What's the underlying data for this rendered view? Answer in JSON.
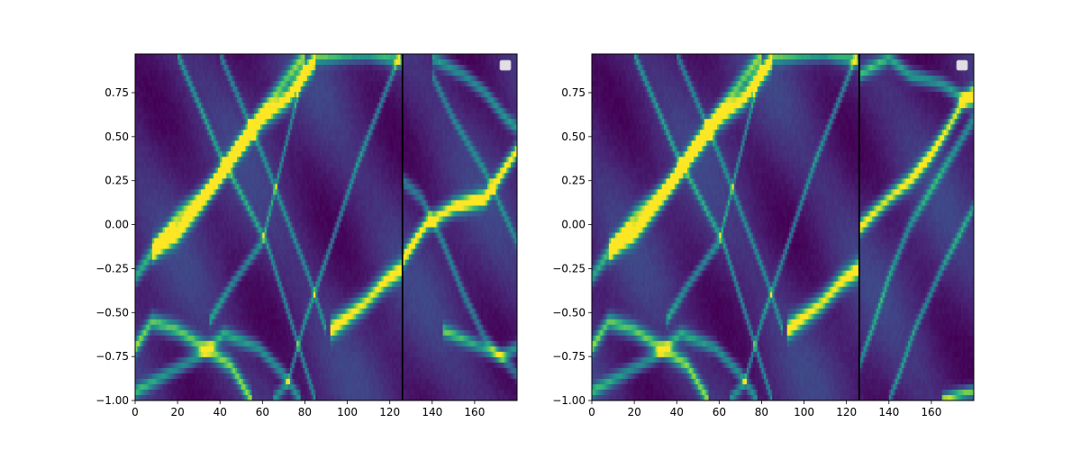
{
  "chart_data": [
    {
      "type": "heatmap",
      "title": "",
      "xlabel": "",
      "ylabel": "",
      "xlim": [
        0,
        180
      ],
      "ylim": [
        -1.0,
        0.97
      ],
      "xticks": [
        0,
        20,
        40,
        60,
        80,
        100,
        120,
        140,
        160
      ],
      "xtick_labels": [
        "0",
        "20",
        "40",
        "60",
        "80",
        "100",
        "120",
        "140",
        "160"
      ],
      "yticks": [
        -1.0,
        -0.75,
        -0.5,
        -0.25,
        0.0,
        0.25,
        0.5,
        0.75
      ],
      "ytick_labels": [
        "−1.00",
        "−0.75",
        "−0.50",
        "−0.25",
        "0.00",
        "0.25",
        "0.50",
        "0.75"
      ],
      "colormap": "viridis",
      "vertical_line_x": 126,
      "legend": {
        "placement": "top-right",
        "entries": []
      },
      "ridges": [
        {
          "points": [
            [
              8,
              -0.15
            ],
            [
              20,
              -0.05
            ],
            [
              32,
              0.13
            ],
            [
              47,
              0.4
            ],
            [
              60,
              0.6
            ],
            [
              72,
              0.72
            ],
            [
              85,
              0.94
            ]
          ],
          "intensity": 0.95,
          "width": 0.06
        },
        {
          "points": [
            [
              0,
              -0.3
            ],
            [
              20,
              0.05
            ],
            [
              38,
              0.25
            ],
            [
              58,
              0.62
            ],
            [
              80,
              0.97
            ]
          ],
          "intensity": 0.6,
          "width": 0.05
        },
        {
          "points": [
            [
              92,
              -0.6
            ],
            [
              108,
              -0.45
            ],
            [
              118,
              -0.32
            ],
            [
              126,
              -0.25
            ]
          ],
          "intensity": 0.9,
          "width": 0.06
        },
        {
          "points": [
            [
              0,
              -0.7
            ],
            [
              8,
              -0.55
            ],
            [
              20,
              -0.6
            ],
            [
              35,
              -0.72
            ],
            [
              45,
              -0.8
            ],
            [
              55,
              -1.0
            ]
          ],
          "intensity": 0.7,
          "width": 0.05
        },
        {
          "points": [
            [
              0,
              -0.95
            ],
            [
              15,
              -0.85
            ],
            [
              30,
              -0.75
            ],
            [
              42,
              -0.62
            ],
            [
              58,
              -0.7
            ],
            [
              70,
              -0.85
            ],
            [
              78,
              -1.0
            ]
          ],
          "intensity": 0.55,
          "width": 0.04
        },
        {
          "points": [
            [
              20,
              0.97
            ],
            [
              40,
              0.4
            ],
            [
              62,
              -0.1
            ],
            [
              85,
              -1.0
            ]
          ],
          "intensity": 0.5,
          "width": 0.035
        },
        {
          "points": [
            [
              40,
              0.97
            ],
            [
              60,
              0.4
            ],
            [
              82,
              -0.3
            ],
            [
              90,
              -0.6
            ]
          ],
          "intensity": 0.45,
          "width": 0.035
        },
        {
          "points": [
            [
              80,
              0.9
            ],
            [
              70,
              0.4
            ],
            [
              60,
              -0.1
            ],
            [
              45,
              -0.35
            ],
            [
              35,
              -0.55
            ]
          ],
          "intensity": 0.5,
          "width": 0.035
        },
        {
          "points": [
            [
              125,
              0.97
            ],
            [
              105,
              0.35
            ],
            [
              90,
              -0.2
            ],
            [
              80,
              -0.55
            ],
            [
              72,
              -0.9
            ],
            [
              65,
              -1.0
            ]
          ],
          "intensity": 0.5,
          "width": 0.035
        },
        {
          "points": [
            [
              85,
              0.95
            ],
            [
              110,
              0.97
            ],
            [
              126,
              0.93
            ]
          ],
          "intensity": 0.6,
          "width": 0.04
        },
        {
          "points": [
            [
              126,
              -0.2
            ],
            [
              137,
              0.0
            ],
            [
              150,
              0.1
            ],
            [
              165,
              0.15
            ],
            [
              176,
              0.35
            ],
            [
              180,
              0.42
            ]
          ],
          "intensity": 0.95,
          "width": 0.05
        },
        {
          "points": [
            [
              126,
              0.25
            ],
            [
              135,
              0.15
            ],
            [
              145,
              -0.1
            ],
            [
              155,
              -0.4
            ],
            [
              165,
              -0.65
            ],
            [
              180,
              -0.85
            ]
          ],
          "intensity": 0.45,
          "width": 0.04
        },
        {
          "points": [
            [
              140,
              0.95
            ],
            [
              155,
              0.85
            ],
            [
              165,
              0.75
            ],
            [
              175,
              0.6
            ],
            [
              180,
              0.55
            ]
          ],
          "intensity": 0.55,
          "width": 0.04
        },
        {
          "points": [
            [
              145,
              -0.6
            ],
            [
              160,
              -0.68
            ],
            [
              172,
              -0.75
            ],
            [
              180,
              -0.7
            ]
          ],
          "intensity": 0.6,
          "width": 0.04
        },
        {
          "points": [
            [
              180,
              -0.1
            ],
            [
              165,
              0.3
            ],
            [
              150,
              0.6
            ],
            [
              140,
              0.85
            ]
          ],
          "intensity": 0.4,
          "width": 0.035
        }
      ]
    },
    {
      "type": "heatmap",
      "title": "",
      "xlabel": "",
      "ylabel": "",
      "xlim": [
        0,
        180
      ],
      "ylim": [
        -1.0,
        0.97
      ],
      "xticks": [
        0,
        20,
        40,
        60,
        80,
        100,
        120,
        140,
        160
      ],
      "xtick_labels": [
        "0",
        "20",
        "40",
        "60",
        "80",
        "100",
        "120",
        "140",
        "160"
      ],
      "yticks": [
        -1.0,
        -0.75,
        -0.5,
        -0.25,
        0.0,
        0.25,
        0.5,
        0.75
      ],
      "ytick_labels": [
        "−1.00",
        "−0.75",
        "−0.50",
        "−0.25",
        "0.00",
        "0.25",
        "0.50",
        "0.75"
      ],
      "colormap": "viridis",
      "vertical_line_x": 126,
      "legend": {
        "placement": "top-right",
        "entries": []
      },
      "ridges": [
        {
          "points": [
            [
              8,
              -0.15
            ],
            [
              20,
              -0.05
            ],
            [
              32,
              0.13
            ],
            [
              47,
              0.4
            ],
            [
              60,
              0.6
            ],
            [
              72,
              0.72
            ],
            [
              85,
              0.94
            ]
          ],
          "intensity": 0.95,
          "width": 0.06
        },
        {
          "points": [
            [
              0,
              -0.3
            ],
            [
              20,
              0.05
            ],
            [
              38,
              0.25
            ],
            [
              58,
              0.62
            ],
            [
              80,
              0.97
            ]
          ],
          "intensity": 0.6,
          "width": 0.05
        },
        {
          "points": [
            [
              92,
              -0.6
            ],
            [
              108,
              -0.45
            ],
            [
              118,
              -0.32
            ],
            [
              126,
              -0.25
            ]
          ],
          "intensity": 0.9,
          "width": 0.06
        },
        {
          "points": [
            [
              0,
              -0.7
            ],
            [
              8,
              -0.55
            ],
            [
              20,
              -0.6
            ],
            [
              35,
              -0.72
            ],
            [
              45,
              -0.8
            ],
            [
              55,
              -1.0
            ]
          ],
          "intensity": 0.7,
          "width": 0.05
        },
        {
          "points": [
            [
              0,
              -0.95
            ],
            [
              15,
              -0.85
            ],
            [
              30,
              -0.75
            ],
            [
              42,
              -0.62
            ],
            [
              58,
              -0.7
            ],
            [
              70,
              -0.85
            ],
            [
              78,
              -1.0
            ]
          ],
          "intensity": 0.55,
          "width": 0.04
        },
        {
          "points": [
            [
              20,
              0.97
            ],
            [
              40,
              0.4
            ],
            [
              62,
              -0.1
            ],
            [
              85,
              -1.0
            ]
          ],
          "intensity": 0.5,
          "width": 0.035
        },
        {
          "points": [
            [
              40,
              0.97
            ],
            [
              60,
              0.4
            ],
            [
              82,
              -0.3
            ],
            [
              90,
              -0.6
            ]
          ],
          "intensity": 0.45,
          "width": 0.035
        },
        {
          "points": [
            [
              80,
              0.9
            ],
            [
              70,
              0.4
            ],
            [
              60,
              -0.1
            ],
            [
              45,
              -0.35
            ],
            [
              35,
              -0.55
            ]
          ],
          "intensity": 0.5,
          "width": 0.035
        },
        {
          "points": [
            [
              125,
              0.97
            ],
            [
              105,
              0.35
            ],
            [
              90,
              -0.2
            ],
            [
              80,
              -0.55
            ],
            [
              72,
              -0.9
            ],
            [
              65,
              -1.0
            ]
          ],
          "intensity": 0.5,
          "width": 0.035
        },
        {
          "points": [
            [
              85,
              0.95
            ],
            [
              110,
              0.97
            ],
            [
              126,
              0.93
            ]
          ],
          "intensity": 0.6,
          "width": 0.04
        },
        {
          "points": [
            [
              126,
              -0.02
            ],
            [
              140,
              0.15
            ],
            [
              150,
              0.25
            ],
            [
              160,
              0.4
            ],
            [
              168,
              0.55
            ],
            [
              175,
              0.7
            ],
            [
              180,
              0.75
            ]
          ],
          "intensity": 0.9,
          "width": 0.05
        },
        {
          "points": [
            [
              126,
              0.85
            ],
            [
              140,
              0.95
            ],
            [
              150,
              0.85
            ],
            [
              165,
              0.8
            ],
            [
              175,
              0.72
            ],
            [
              180,
              0.7
            ]
          ],
          "intensity": 0.6,
          "width": 0.04
        },
        {
          "points": [
            [
              180,
              0.6
            ],
            [
              165,
              0.3
            ],
            [
              150,
              0.0
            ],
            [
              140,
              -0.3
            ],
            [
              132,
              -0.6
            ],
            [
              126,
              -0.8
            ]
          ],
          "intensity": 0.5,
          "width": 0.04
        },
        {
          "points": [
            [
              180,
              0.1
            ],
            [
              165,
              -0.25
            ],
            [
              152,
              -0.6
            ],
            [
              145,
              -0.85
            ],
            [
              140,
              -1.0
            ]
          ],
          "intensity": 0.5,
          "width": 0.035
        },
        {
          "points": [
            [
              165,
              -1.0
            ],
            [
              172,
              -0.97
            ],
            [
              180,
              -0.95
            ]
          ],
          "intensity": 0.8,
          "width": 0.035
        }
      ]
    }
  ]
}
